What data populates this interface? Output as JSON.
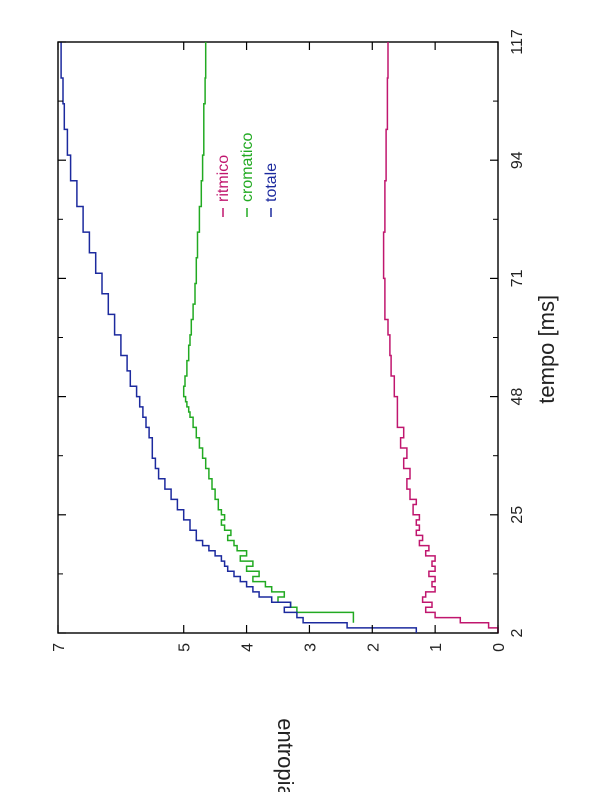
{
  "chart_data": {
    "type": "line",
    "title": "",
    "xlabel": "tempo [ms]",
    "ylabel": "entropia",
    "x_ticks": [
      2,
      25,
      48,
      71,
      94,
      117
    ],
    "y_ticks": [
      0,
      1,
      2,
      3,
      4,
      5,
      7
    ],
    "xlim": [
      2,
      117
    ],
    "ylim": [
      0,
      7
    ],
    "grid": false,
    "legend_position": "top-right",
    "orientation": "rotated-90",
    "series": [
      {
        "name": "ritmico",
        "color": "#c0166e",
        "x": [
          2,
          3,
          4,
          5,
          6,
          7,
          8,
          9,
          10,
          11,
          12,
          13,
          14,
          15,
          16,
          17,
          18,
          19,
          20,
          21,
          22,
          23,
          24,
          25,
          27,
          28,
          30,
          32,
          34,
          36,
          38,
          40,
          42,
          45,
          48,
          52,
          56,
          60,
          63,
          67,
          71,
          75,
          80,
          85,
          90,
          95,
          100,
          105,
          110,
          117
        ],
        "y": [
          0.0,
          0.15,
          0.6,
          1.0,
          1.15,
          1.05,
          1.2,
          1.15,
          1.0,
          1.05,
          1.0,
          1.1,
          1.0,
          1.05,
          1.0,
          1.15,
          1.1,
          1.25,
          1.2,
          1.3,
          1.25,
          1.3,
          1.25,
          1.35,
          1.3,
          1.4,
          1.45,
          1.4,
          1.5,
          1.45,
          1.55,
          1.5,
          1.6,
          1.6,
          1.65,
          1.7,
          1.72,
          1.75,
          1.8,
          1.8,
          1.82,
          1.82,
          1.8,
          1.8,
          1.78,
          1.78,
          1.76,
          1.76,
          1.75,
          1.75
        ]
      },
      {
        "name": "cromatico",
        "color": "#22aa22",
        "x": [
          4,
          5,
          6,
          7,
          8,
          9,
          10,
          11,
          12,
          13,
          14,
          15,
          16,
          17,
          18,
          19,
          20,
          21,
          22,
          23,
          24,
          25,
          26,
          28,
          30,
          32,
          34,
          36,
          38,
          40,
          42,
          44,
          45,
          46,
          47,
          48,
          50,
          52,
          55,
          58,
          60,
          63,
          66,
          70,
          75,
          80,
          85,
          90,
          95,
          100,
          105,
          110,
          117
        ],
        "y": [
          2.3,
          2.3,
          3.2,
          3.3,
          3.5,
          3.4,
          3.6,
          3.7,
          3.9,
          3.8,
          4.0,
          3.9,
          4.1,
          4.0,
          4.15,
          4.2,
          4.3,
          4.25,
          4.35,
          4.4,
          4.35,
          4.4,
          4.45,
          4.5,
          4.55,
          4.6,
          4.65,
          4.7,
          4.75,
          4.8,
          4.85,
          4.9,
          4.92,
          4.95,
          4.97,
          5.0,
          4.98,
          4.95,
          4.92,
          4.9,
          4.88,
          4.85,
          4.82,
          4.8,
          4.78,
          4.75,
          4.72,
          4.7,
          4.68,
          4.68,
          4.66,
          4.65,
          4.65
        ]
      },
      {
        "name": "totale",
        "color": "#1c2a9e",
        "x": [
          2,
          3,
          4,
          5,
          6,
          7,
          8,
          9,
          10,
          11,
          12,
          13,
          14,
          15,
          16,
          17,
          18,
          19,
          20,
          22,
          24,
          26,
          28,
          30,
          32,
          34,
          36,
          38,
          40,
          42,
          44,
          46,
          48,
          50,
          53,
          56,
          60,
          64,
          68,
          72,
          76,
          80,
          85,
          90,
          95,
          100,
          105,
          110,
          117
        ],
        "y": [
          1.3,
          2.4,
          3.1,
          3.2,
          3.4,
          3.3,
          3.6,
          3.8,
          3.9,
          4.0,
          4.1,
          4.2,
          4.3,
          4.35,
          4.4,
          4.5,
          4.6,
          4.7,
          4.8,
          4.9,
          5.0,
          5.1,
          5.2,
          5.3,
          5.4,
          5.45,
          5.5,
          5.5,
          5.55,
          5.6,
          5.65,
          5.7,
          5.75,
          5.85,
          5.9,
          6.0,
          6.1,
          6.2,
          6.3,
          6.4,
          6.5,
          6.6,
          6.7,
          6.8,
          6.85,
          6.9,
          6.92,
          6.95,
          6.95
        ]
      }
    ]
  }
}
